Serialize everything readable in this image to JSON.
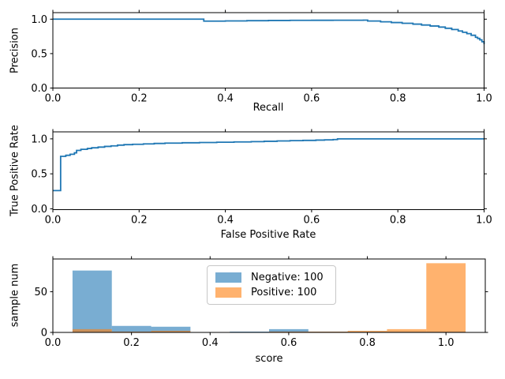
{
  "figure": {
    "background": "#ffffff",
    "spine_color": "#000000",
    "tick_color": "#000000",
    "text_color": "#000000"
  },
  "legend": {
    "entries": [
      "Negative: 100",
      "Positive: 100"
    ],
    "position": "upper center",
    "border_color": "#c7c7c7"
  },
  "chart_data": [
    {
      "type": "line",
      "name": "precision-recall-curve",
      "xlabel": "Recall",
      "ylabel": "Precision",
      "xlim": [
        0,
        1.0
      ],
      "ylim": [
        0,
        1.095
      ],
      "xticks": {
        "values": [
          0,
          0.2,
          0.4,
          0.6,
          0.8,
          1.0
        ],
        "labels": [
          "0.0",
          "0.2",
          "0.4",
          "0.6",
          "0.8",
          "1.0"
        ]
      },
      "yticks": {
        "values": [
          0,
          0.5,
          1.0
        ],
        "labels": [
          "0.0",
          "0.5",
          "1.0"
        ]
      },
      "line_color": "#1f77b4",
      "line_width": 1.8,
      "draw_style": "steps",
      "grid": false,
      "points": [
        [
          0,
          1.0
        ],
        [
          0.35,
          1.0
        ],
        [
          0.35,
          0.972
        ],
        [
          0.4,
          0.975
        ],
        [
          0.45,
          0.978
        ],
        [
          0.5,
          0.981
        ],
        [
          0.55,
          0.983
        ],
        [
          0.6,
          0.984
        ],
        [
          0.65,
          0.985
        ],
        [
          0.72,
          0.986
        ],
        [
          0.73,
          0.973
        ],
        [
          0.76,
          0.962
        ],
        [
          0.785,
          0.951
        ],
        [
          0.81,
          0.94
        ],
        [
          0.835,
          0.928
        ],
        [
          0.855,
          0.915
        ],
        [
          0.875,
          0.901
        ],
        [
          0.895,
          0.885
        ],
        [
          0.91,
          0.868
        ],
        [
          0.925,
          0.85
        ],
        [
          0.94,
          0.828
        ],
        [
          0.95,
          0.81
        ],
        [
          0.96,
          0.79
        ],
        [
          0.97,
          0.766
        ],
        [
          0.98,
          0.737
        ],
        [
          0.985,
          0.72
        ],
        [
          0.99,
          0.7
        ],
        [
          0.995,
          0.672
        ],
        [
          1.0,
          0.637
        ]
      ]
    },
    {
      "type": "line",
      "name": "roc-curve",
      "xlabel": "False Positive Rate",
      "ylabel": "True Positive Rate",
      "xlim": [
        0,
        1.0
      ],
      "ylim": [
        -0.012,
        1.1
      ],
      "xticks": {
        "values": [
          0,
          0.2,
          0.4,
          0.6,
          0.8,
          1.0
        ],
        "labels": [
          "0.0",
          "0.2",
          "0.4",
          "0.6",
          "0.8",
          "1.0"
        ]
      },
      "yticks": {
        "values": [
          0,
          0.5,
          1.0
        ],
        "labels": [
          "0.0",
          "0.5",
          "1.0"
        ]
      },
      "line_color": "#1f77b4",
      "line_width": 1.8,
      "draw_style": "steps",
      "grid": false,
      "points": [
        [
          0,
          0.26
        ],
        [
          0.018,
          0.26
        ],
        [
          0.018,
          0.75
        ],
        [
          0.03,
          0.765
        ],
        [
          0.04,
          0.78
        ],
        [
          0.05,
          0.8
        ],
        [
          0.055,
          0.835
        ],
        [
          0.065,
          0.85
        ],
        [
          0.08,
          0.862
        ],
        [
          0.09,
          0.872
        ],
        [
          0.105,
          0.882
        ],
        [
          0.12,
          0.892
        ],
        [
          0.135,
          0.9
        ],
        [
          0.15,
          0.91
        ],
        [
          0.165,
          0.917
        ],
        [
          0.185,
          0.922
        ],
        [
          0.21,
          0.928
        ],
        [
          0.235,
          0.934
        ],
        [
          0.26,
          0.939
        ],
        [
          0.3,
          0.944
        ],
        [
          0.34,
          0.948
        ],
        [
          0.38,
          0.952
        ],
        [
          0.42,
          0.956
        ],
        [
          0.46,
          0.96
        ],
        [
          0.49,
          0.965
        ],
        [
          0.52,
          0.97
        ],
        [
          0.55,
          0.974
        ],
        [
          0.58,
          0.978
        ],
        [
          0.61,
          0.982
        ],
        [
          0.63,
          0.986
        ],
        [
          0.65,
          0.99
        ],
        [
          0.66,
          1.0
        ],
        [
          1.0,
          1.0
        ]
      ]
    },
    {
      "type": "bar",
      "name": "score-histogram",
      "xlabel": "score",
      "ylabel": "sample num",
      "xlim": [
        0,
        1.1
      ],
      "ylim": [
        0,
        90.2
      ],
      "xticks": {
        "values": [
          0,
          0.2,
          0.4,
          0.6,
          0.8,
          1.0
        ],
        "labels": [
          "0.0",
          "0.2",
          "0.4",
          "0.6",
          "0.8",
          "1.0"
        ]
      },
      "yticks": {
        "values": [
          0,
          50
        ],
        "labels": [
          "0",
          "50"
        ]
      },
      "bin_edges": [
        0.05,
        0.15,
        0.25,
        0.35,
        0.45,
        0.55,
        0.65,
        0.75,
        0.85,
        0.95,
        1.05
      ],
      "grid": false,
      "series": [
        {
          "name": "Negative: 100",
          "total": 100,
          "color": "#1f77b4",
          "alpha": 0.6,
          "values": [
            76,
            8,
            7,
            0,
            1,
            4,
            1,
            1,
            1,
            1
          ]
        },
        {
          "name": "Positive: 100",
          "total": 100,
          "color": "#ff7f0e",
          "alpha": 0.6,
          "values": [
            4,
            1,
            2,
            0,
            0,
            1,
            1,
            2,
            4,
            85
          ]
        }
      ]
    }
  ]
}
